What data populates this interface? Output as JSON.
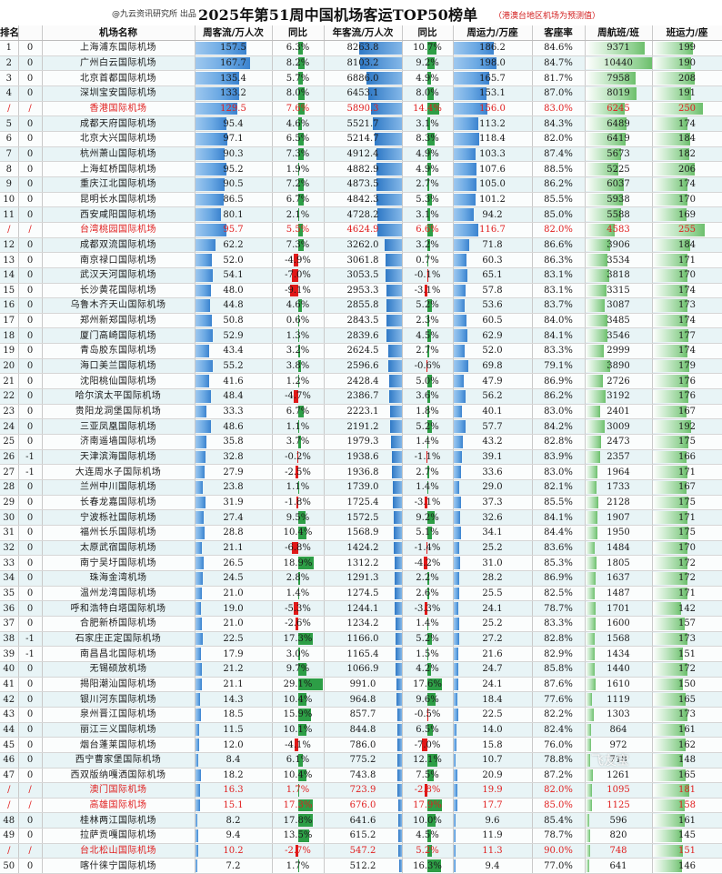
{
  "header": {
    "source": "@九云资讯研究所 出品",
    "title": "2025年第51周中国机场客运TOP50榜单",
    "note": "（港澳台地区机场为预测值）"
  },
  "columns": [
    "排名",
    "",
    "机场名称",
    "周客流/万人次",
    "同比",
    "年客流/万人次",
    "同比",
    "周运力/万座",
    "客座率",
    "周航班/班",
    "班运力/座"
  ],
  "colors": {
    "positive": "#2d9e46",
    "negative": "#e01818",
    "highlight_text": "#e01e1e",
    "bar_blue": "#3b83cf",
    "bar_green": "#6cbf6c"
  },
  "watermark": "飞友宝",
  "rows": [
    {
      "rank": "1",
      "chg": "0",
      "name": "上海浦东国际机场",
      "wk": 157.5,
      "wk_yoy": 6.3,
      "yr": 8263.8,
      "yr_yoy": 10.7,
      "cap": 186.2,
      "lf": "84.6%",
      "fl": 9371,
      "spf": 199,
      "hk": false
    },
    {
      "rank": "2",
      "chg": "0",
      "name": "广州白云国际机场",
      "wk": 167.7,
      "wk_yoy": 8.2,
      "yr": 8103.2,
      "yr_yoy": 9.2,
      "cap": 198.0,
      "lf": "84.7%",
      "fl": 10440,
      "spf": 190,
      "hk": false
    },
    {
      "rank": "3",
      "chg": "0",
      "name": "北京首都国际机场",
      "wk": 135.4,
      "wk_yoy": 5.7,
      "yr": 6886.0,
      "yr_yoy": 4.9,
      "cap": 165.7,
      "lf": "81.7%",
      "fl": 7958,
      "spf": 208,
      "hk": false
    },
    {
      "rank": "4",
      "chg": "0",
      "name": "深圳宝安国际机场",
      "wk": 133.2,
      "wk_yoy": 8.0,
      "yr": 6453.1,
      "yr_yoy": 8.0,
      "cap": 153.1,
      "lf": "87.0%",
      "fl": 8019,
      "spf": 191,
      "hk": false
    },
    {
      "rank": "/",
      "chg": "/",
      "name": "香港国际机场",
      "wk": 129.5,
      "wk_yoy": 7.6,
      "yr": 5890.3,
      "yr_yoy": 14.4,
      "cap": 156.0,
      "lf": "83.0%",
      "fl": 6245,
      "spf": 250,
      "hk": true
    },
    {
      "rank": "5",
      "chg": "0",
      "name": "成都天府国际机场",
      "wk": 95.4,
      "wk_yoy": 4.6,
      "yr": 5521.7,
      "yr_yoy": 3.1,
      "cap": 113.2,
      "lf": "84.3%",
      "fl": 6489,
      "spf": 174,
      "hk": false
    },
    {
      "rank": "6",
      "chg": "0",
      "name": "北京大兴国际机场",
      "wk": 97.1,
      "wk_yoy": 6.5,
      "yr": 5214.7,
      "yr_yoy": 8.3,
      "cap": 118.4,
      "lf": "82.0%",
      "fl": 6419,
      "spf": 184,
      "hk": false
    },
    {
      "rank": "7",
      "chg": "0",
      "name": "杭州萧山国际机场",
      "wk": 90.3,
      "wk_yoy": 7.3,
      "yr": 4912.4,
      "yr_yoy": 4.9,
      "cap": 103.3,
      "lf": "87.4%",
      "fl": 5673,
      "spf": 182,
      "hk": false
    },
    {
      "rank": "8",
      "chg": "0",
      "name": "上海虹桥国际机场",
      "wk": 95.2,
      "wk_yoy": 1.9,
      "yr": 4882.9,
      "yr_yoy": 4.9,
      "cap": 107.6,
      "lf": "88.5%",
      "fl": 5225,
      "spf": 206,
      "hk": false
    },
    {
      "rank": "9",
      "chg": "0",
      "name": "重庆江北国际机场",
      "wk": 90.5,
      "wk_yoy": 7.2,
      "yr": 4873.5,
      "yr_yoy": 2.7,
      "cap": 105.0,
      "lf": "86.2%",
      "fl": 6037,
      "spf": 174,
      "hk": false
    },
    {
      "rank": "10",
      "chg": "0",
      "name": "昆明长水国际机场",
      "wk": 86.5,
      "wk_yoy": 6.7,
      "yr": 4842.3,
      "yr_yoy": 5.3,
      "cap": 101.2,
      "lf": "85.5%",
      "fl": 5938,
      "spf": 170,
      "hk": false
    },
    {
      "rank": "11",
      "chg": "0",
      "name": "西安咸阳国际机场",
      "wk": 80.1,
      "wk_yoy": 2.1,
      "yr": 4728.2,
      "yr_yoy": 3.1,
      "cap": 94.2,
      "lf": "85.0%",
      "fl": 5588,
      "spf": 169,
      "hk": false
    },
    {
      "rank": "/",
      "chg": "/",
      "name": "台湾桃园国际机场",
      "wk": 95.7,
      "wk_yoy": 5.5,
      "yr": 4624.9,
      "yr_yoy": 6.6,
      "cap": 116.7,
      "lf": "82.0%",
      "fl": 4583,
      "spf": 255,
      "hk": true
    },
    {
      "rank": "12",
      "chg": "0",
      "name": "成都双流国际机场",
      "wk": 62.2,
      "wk_yoy": 7.3,
      "yr": 3262.0,
      "yr_yoy": 3.2,
      "cap": 71.8,
      "lf": "86.6%",
      "fl": 3906,
      "spf": 184,
      "hk": false
    },
    {
      "rank": "13",
      "chg": "0",
      "name": "南京禄口国际机场",
      "wk": 52.0,
      "wk_yoy": -4.9,
      "yr": 3061.8,
      "yr_yoy": 0.7,
      "cap": 60.3,
      "lf": "86.3%",
      "fl": 3534,
      "spf": 171,
      "hk": false
    },
    {
      "rank": "14",
      "chg": "0",
      "name": "武汉天河国际机场",
      "wk": 54.1,
      "wk_yoy": -7.0,
      "yr": 3053.5,
      "yr_yoy": -0.1,
      "cap": 65.1,
      "lf": "83.1%",
      "fl": 3818,
      "spf": 170,
      "hk": false
    },
    {
      "rank": "15",
      "chg": "0",
      "name": "长沙黄花国际机场",
      "wk": 48.0,
      "wk_yoy": -9.1,
      "yr": 2953.3,
      "yr_yoy": -3.1,
      "cap": 57.8,
      "lf": "83.1%",
      "fl": 3315,
      "spf": 174,
      "hk": false
    },
    {
      "rank": "16",
      "chg": "0",
      "name": "乌鲁木齐天山国际机场",
      "wk": 44.8,
      "wk_yoy": 4.6,
      "yr": 2855.8,
      "yr_yoy": 5.2,
      "cap": 53.6,
      "lf": "83.7%",
      "fl": 3087,
      "spf": 173,
      "hk": false
    },
    {
      "rank": "17",
      "chg": "0",
      "name": "郑州新郑国际机场",
      "wk": 50.8,
      "wk_yoy": 0.6,
      "yr": 2843.5,
      "yr_yoy": 2.3,
      "cap": 60.5,
      "lf": "84.0%",
      "fl": 3485,
      "spf": 174,
      "hk": false
    },
    {
      "rank": "18",
      "chg": "0",
      "name": "厦门高崎国际机场",
      "wk": 52.9,
      "wk_yoy": 1.3,
      "yr": 2839.6,
      "yr_yoy": 4.5,
      "cap": 62.9,
      "lf": "84.1%",
      "fl": 3546,
      "spf": 177,
      "hk": false
    },
    {
      "rank": "19",
      "chg": "0",
      "name": "青岛胶东国际机场",
      "wk": 43.4,
      "wk_yoy": 3.2,
      "yr": 2624.5,
      "yr_yoy": 2.7,
      "cap": 52.0,
      "lf": "83.3%",
      "fl": 2999,
      "spf": 174,
      "hk": false
    },
    {
      "rank": "20",
      "chg": "0",
      "name": "海口美兰国际机场",
      "wk": 55.2,
      "wk_yoy": 3.8,
      "yr": 2596.6,
      "yr_yoy": -0.6,
      "cap": 69.8,
      "lf": "79.1%",
      "fl": 3890,
      "spf": 179,
      "hk": false
    },
    {
      "rank": "21",
      "chg": "0",
      "name": "沈阳桃仙国际机场",
      "wk": 41.6,
      "wk_yoy": 1.2,
      "yr": 2428.4,
      "yr_yoy": 5.0,
      "cap": 47.9,
      "lf": "86.9%",
      "fl": 2726,
      "spf": 176,
      "hk": false
    },
    {
      "rank": "22",
      "chg": "0",
      "name": "哈尔滨太平国际机场",
      "wk": 48.4,
      "wk_yoy": -4.7,
      "yr": 2386.7,
      "yr_yoy": 3.6,
      "cap": 56.2,
      "lf": "86.2%",
      "fl": 3192,
      "spf": 176,
      "hk": false
    },
    {
      "rank": "23",
      "chg": "0",
      "name": "贵阳龙洞堡国际机场",
      "wk": 33.3,
      "wk_yoy": 6.7,
      "yr": 2223.1,
      "yr_yoy": 1.8,
      "cap": 40.1,
      "lf": "83.0%",
      "fl": 2401,
      "spf": 167,
      "hk": false
    },
    {
      "rank": "24",
      "chg": "0",
      "name": "三亚凤凰国际机场",
      "wk": 48.6,
      "wk_yoy": 1.1,
      "yr": 2191.2,
      "yr_yoy": 5.2,
      "cap": 57.7,
      "lf": "84.2%",
      "fl": 3009,
      "spf": 192,
      "hk": false
    },
    {
      "rank": "25",
      "chg": "0",
      "name": "济南遥墙国际机场",
      "wk": 35.8,
      "wk_yoy": 3.7,
      "yr": 1979.3,
      "yr_yoy": 1.4,
      "cap": 43.2,
      "lf": "82.8%",
      "fl": 2473,
      "spf": 175,
      "hk": false
    },
    {
      "rank": "26",
      "chg": "-1",
      "name": "天津滨海国际机场",
      "wk": 32.8,
      "wk_yoy": -0.2,
      "yr": 1938.6,
      "yr_yoy": -1.1,
      "cap": 39.1,
      "lf": "83.9%",
      "fl": 2357,
      "spf": 166,
      "hk": false
    },
    {
      "rank": "27",
      "chg": "-1",
      "name": "大连周水子国际机场",
      "wk": 27.9,
      "wk_yoy": -2.5,
      "yr": 1936.8,
      "yr_yoy": 2.7,
      "cap": 33.6,
      "lf": "83.0%",
      "fl": 1964,
      "spf": 171,
      "hk": false
    },
    {
      "rank": "28",
      "chg": "0",
      "name": "兰州中川国际机场",
      "wk": 23.8,
      "wk_yoy": 1.1,
      "yr": 1739.0,
      "yr_yoy": 1.4,
      "cap": 29.0,
      "lf": "82.1%",
      "fl": 1733,
      "spf": 167,
      "hk": false
    },
    {
      "rank": "29",
      "chg": "0",
      "name": "长春龙嘉国际机场",
      "wk": 31.9,
      "wk_yoy": -1.8,
      "yr": 1725.4,
      "yr_yoy": -3.1,
      "cap": 37.3,
      "lf": "85.5%",
      "fl": 2128,
      "spf": 175,
      "hk": false
    },
    {
      "rank": "30",
      "chg": "0",
      "name": "宁波栎社国际机场",
      "wk": 27.4,
      "wk_yoy": 9.5,
      "yr": 1572.5,
      "yr_yoy": 9.2,
      "cap": 32.6,
      "lf": "84.1%",
      "fl": 1907,
      "spf": 171,
      "hk": false
    },
    {
      "rank": "31",
      "chg": "0",
      "name": "福州长乐国际机场",
      "wk": 28.8,
      "wk_yoy": 10.4,
      "yr": 1568.9,
      "yr_yoy": 5.1,
      "cap": 34.1,
      "lf": "84.4%",
      "fl": 1950,
      "spf": 175,
      "hk": false
    },
    {
      "rank": "32",
      "chg": "0",
      "name": "太原武宿国际机场",
      "wk": 21.1,
      "wk_yoy": -6.8,
      "yr": 1424.2,
      "yr_yoy": -1.4,
      "cap": 25.2,
      "lf": "83.6%",
      "fl": 1484,
      "spf": 170,
      "hk": false
    },
    {
      "rank": "33",
      "chg": "0",
      "name": "南宁吴圩国际机场",
      "wk": 26.5,
      "wk_yoy": 18.9,
      "yr": 1312.2,
      "yr_yoy": -4.2,
      "cap": 31.0,
      "lf": "85.3%",
      "fl": 1805,
      "spf": 172,
      "hk": false
    },
    {
      "rank": "34",
      "chg": "0",
      "name": "珠海金湾机场",
      "wk": 24.5,
      "wk_yoy": 2.8,
      "yr": 1291.3,
      "yr_yoy": 2.2,
      "cap": 28.2,
      "lf": "86.9%",
      "fl": 1637,
      "spf": 172,
      "hk": false
    },
    {
      "rank": "35",
      "chg": "0",
      "name": "温州龙湾国际机场",
      "wk": 21.0,
      "wk_yoy": 1.4,
      "yr": 1274.5,
      "yr_yoy": 2.6,
      "cap": 25.5,
      "lf": "82.5%",
      "fl": 1487,
      "spf": 171,
      "hk": false
    },
    {
      "rank": "36",
      "chg": "0",
      "name": "呼和浩特白塔国际机场",
      "wk": 19.0,
      "wk_yoy": -5.3,
      "yr": 1244.1,
      "yr_yoy": -3.3,
      "cap": 24.1,
      "lf": "78.7%",
      "fl": 1701,
      "spf": 142,
      "hk": false
    },
    {
      "rank": "37",
      "chg": "0",
      "name": "合肥新桥国际机场",
      "wk": 21.0,
      "wk_yoy": -2.6,
      "yr": 1234.2,
      "yr_yoy": 1.4,
      "cap": 25.2,
      "lf": "83.3%",
      "fl": 1600,
      "spf": 157,
      "hk": false
    },
    {
      "rank": "38",
      "chg": "-1",
      "name": "石家庄正定国际机场",
      "wk": 22.5,
      "wk_yoy": 17.3,
      "yr": 1166.0,
      "yr_yoy": 5.2,
      "cap": 27.2,
      "lf": "82.8%",
      "fl": 1568,
      "spf": 173,
      "hk": false
    },
    {
      "rank": "39",
      "chg": "-1",
      "name": "南昌昌北国际机场",
      "wk": 17.9,
      "wk_yoy": 3.0,
      "yr": 1165.4,
      "yr_yoy": 1.5,
      "cap": 21.6,
      "lf": "82.9%",
      "fl": 1434,
      "spf": 151,
      "hk": false
    },
    {
      "rank": "40",
      "chg": "0",
      "name": "无锡硕放机场",
      "wk": 21.2,
      "wk_yoy": 9.7,
      "yr": 1066.9,
      "yr_yoy": 4.2,
      "cap": 24.7,
      "lf": "85.8%",
      "fl": 1440,
      "spf": 172,
      "hk": false
    },
    {
      "rank": "41",
      "chg": "0",
      "name": "揭阳潮汕国际机场",
      "wk": 21.1,
      "wk_yoy": 29.1,
      "yr": 991.0,
      "yr_yoy": 17.6,
      "cap": 24.1,
      "lf": "87.6%",
      "fl": 1610,
      "spf": 150,
      "hk": false
    },
    {
      "rank": "42",
      "chg": "0",
      "name": "银川河东国际机场",
      "wk": 14.3,
      "wk_yoy": 10.4,
      "yr": 964.8,
      "yr_yoy": 9.6,
      "cap": 18.4,
      "lf": "77.6%",
      "fl": 1119,
      "spf": 165,
      "hk": false
    },
    {
      "rank": "43",
      "chg": "0",
      "name": "泉州晋江国际机场",
      "wk": 18.5,
      "wk_yoy": 15.9,
      "yr": 857.7,
      "yr_yoy": -0.5,
      "cap": 22.5,
      "lf": "82.2%",
      "fl": 1303,
      "spf": 173,
      "hk": false
    },
    {
      "rank": "44",
      "chg": "0",
      "name": "丽江三义国际机场",
      "wk": 11.5,
      "wk_yoy": 10.1,
      "yr": 844.8,
      "yr_yoy": 6.5,
      "cap": 14.0,
      "lf": "82.4%",
      "fl": 864,
      "spf": 161,
      "hk": false
    },
    {
      "rank": "45",
      "chg": "0",
      "name": "烟台蓬莱国际机场",
      "wk": 12.0,
      "wk_yoy": -4.1,
      "yr": 786.0,
      "yr_yoy": -7.0,
      "cap": 15.8,
      "lf": "76.0%",
      "fl": 972,
      "spf": 162,
      "hk": false
    },
    {
      "rank": "46",
      "chg": "0",
      "name": "西宁曹家堡国际机场",
      "wk": 8.4,
      "wk_yoy": 6.1,
      "yr": 775.2,
      "yr_yoy": 12.1,
      "cap": 10.7,
      "lf": "78.8%",
      "fl": 718,
      "spf": 148,
      "hk": false
    },
    {
      "rank": "47",
      "chg": "0",
      "name": "西双版纳嘎洒国际机场",
      "wk": 18.2,
      "wk_yoy": 10.4,
      "yr": 743.8,
      "yr_yoy": 7.5,
      "cap": 20.9,
      "lf": "87.2%",
      "fl": 1261,
      "spf": 165,
      "hk": false
    },
    {
      "rank": "/",
      "chg": "/",
      "name": "澳门国际机场",
      "wk": 16.3,
      "wk_yoy": 1.7,
      "yr": 723.9,
      "yr_yoy": -2.8,
      "cap": 19.9,
      "lf": "82.0%",
      "fl": 1095,
      "spf": 181,
      "hk": true
    },
    {
      "rank": "/",
      "chg": "/",
      "name": "高雄国际机场",
      "wk": 15.1,
      "wk_yoy": 17.3,
      "yr": 676.0,
      "yr_yoy": 17.9,
      "cap": 17.7,
      "lf": "85.0%",
      "fl": 1125,
      "spf": 158,
      "hk": true
    },
    {
      "rank": "48",
      "chg": "0",
      "name": "桂林两江国际机场",
      "wk": 8.2,
      "wk_yoy": 17.8,
      "yr": 641.6,
      "yr_yoy": 10.0,
      "cap": 9.6,
      "lf": "85.4%",
      "fl": 596,
      "spf": 161,
      "hk": false
    },
    {
      "rank": "49",
      "chg": "0",
      "name": "拉萨贡嘎国际机场",
      "wk": 9.4,
      "wk_yoy": 13.5,
      "yr": 615.2,
      "yr_yoy": 4.5,
      "cap": 11.9,
      "lf": "78.7%",
      "fl": 820,
      "spf": 145,
      "hk": false
    },
    {
      "rank": "/",
      "chg": "/",
      "name": "台北松山国际机场",
      "wk": 10.2,
      "wk_yoy": -2.7,
      "yr": 547.2,
      "yr_yoy": 5.2,
      "cap": 11.3,
      "lf": "90.0%",
      "fl": 748,
      "spf": 151,
      "hk": true
    },
    {
      "rank": "50",
      "chg": "0",
      "name": "喀什徕宁国际机场",
      "wk": 7.2,
      "wk_yoy": 1.7,
      "yr": 512.2,
      "yr_yoy": 16.3,
      "cap": 9.4,
      "lf": "77.0%",
      "fl": 641,
      "spf": 146,
      "hk": false
    }
  ]
}
